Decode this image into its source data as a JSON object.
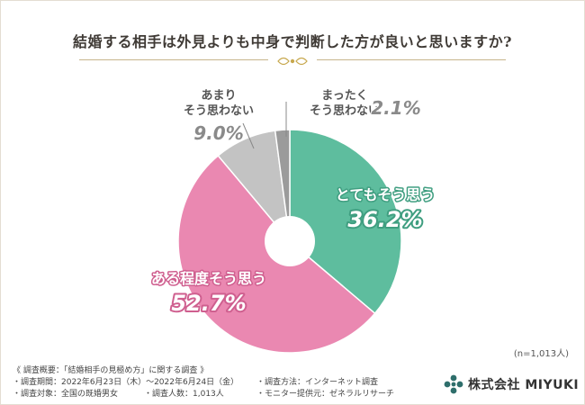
{
  "title": "結婚する相手は外見よりも中身で判断した方が良いと思いますか?",
  "chart_data": {
    "type": "pie",
    "donut": true,
    "categories": [
      "とてもそう思う",
      "ある程度そう思う",
      "あまりそう思わない",
      "まったくそう思わない"
    ],
    "labels_display": [
      [
        "とてもそう思う"
      ],
      [
        "ある程度そう思う"
      ],
      [
        "あまり",
        "そう思わない"
      ],
      [
        "まったく",
        "そう思わない"
      ]
    ],
    "values": [
      36.2,
      52.7,
      9.0,
      2.1
    ],
    "value_labels": [
      "36.2%",
      "52.7%",
      "9.0%",
      "2.1%"
    ],
    "colors": [
      "#5ebd9e",
      "#ea88b1",
      "#c3c3c3",
      "#9b9b9b"
    ]
  },
  "n_label": "(n=1,013人)",
  "survey": {
    "heading": "《 調査概要：「結婚相手の見極め方」に関する調査 》",
    "period": "・調査期間：2022年6月23日（木）～2022年6月24日（金）",
    "target": "・調査対象：全国の既婚男女",
    "count": "・調査人数：1,013人",
    "method": "・調査方法：インターネット調査",
    "provider": "・モニター提供元：ゼネラルリサーチ"
  },
  "brand": {
    "name": "株式会社 MIYUKI",
    "color": "#2e6e6b"
  }
}
